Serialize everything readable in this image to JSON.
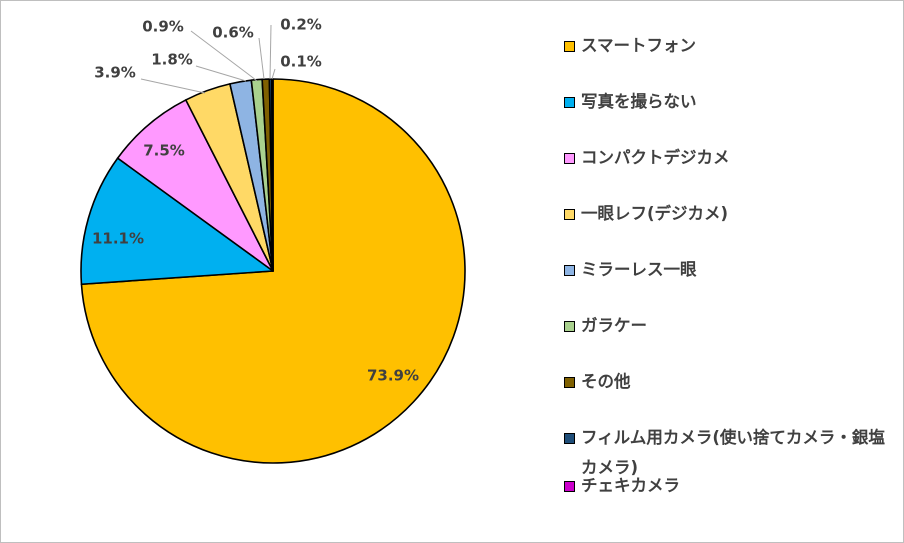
{
  "chart_data": {
    "type": "pie",
    "title": "",
    "legend_position": "right",
    "slices": [
      {
        "label": "スマートフォン",
        "value": 73.9,
        "display": "73.9%",
        "color": "#FFC000"
      },
      {
        "label": "写真を撮らない",
        "value": 11.1,
        "display": "11.1%",
        "color": "#00B0F0"
      },
      {
        "label": "コンパクトデジカメ",
        "value": 7.5,
        "display": "7.5%",
        "color": "#FF99FF"
      },
      {
        "label": "一眼レフ(デジカメ)",
        "value": 3.9,
        "display": "3.9%",
        "color": "#FFD966"
      },
      {
        "label": "ミラーレス一眼",
        "value": 1.8,
        "display": "1.8%",
        "color": "#8EB4E3"
      },
      {
        "label": "ガラケー",
        "value": 0.9,
        "display": "0.9%",
        "color": "#A9D18E"
      },
      {
        "label": "その他",
        "value": 0.6,
        "display": "0.6%",
        "color": "#7F6000"
      },
      {
        "label": "フィルム用カメラ(使い捨てカメラ・銀塩カメラ)",
        "value": 0.2,
        "display": "0.2%",
        "color": "#1F4E79"
      },
      {
        "label": "チェキカメラ",
        "value": 0.1,
        "display": "0.1%",
        "color": "#CC00CC"
      }
    ]
  }
}
